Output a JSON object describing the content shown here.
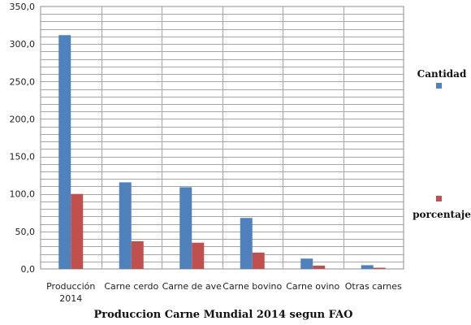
{
  "chart_data": {
    "type": "bar",
    "title": "Produccion Carne Mundial 2014 segun FAO",
    "categories": [
      [
        "Producción",
        "2014"
      ],
      [
        "Carne cerdo"
      ],
      [
        "Carne de ave"
      ],
      [
        "Carne  bovino"
      ],
      [
        "Carne  ovino"
      ],
      [
        "Otras carnes"
      ]
    ],
    "series": [
      {
        "name": "Cantidad",
        "color": "#4f81bd",
        "values": [
          311.8,
          115.5,
          109.0,
          68.0,
          13.8,
          5.0
        ]
      },
      {
        "name": "porcentaje",
        "color": "#c0504d",
        "values": [
          100.0,
          37.0,
          35.0,
          21.8,
          4.4,
          1.6
        ]
      }
    ],
    "ylim": [
      0,
      350
    ],
    "yticks": [
      "0,0",
      "50,0",
      "100,0",
      "150,0",
      "200,0",
      "250,0",
      "300,0",
      "350,0"
    ],
    "minor_grid_step": 10,
    "grid": true,
    "legend_placement": "right"
  }
}
